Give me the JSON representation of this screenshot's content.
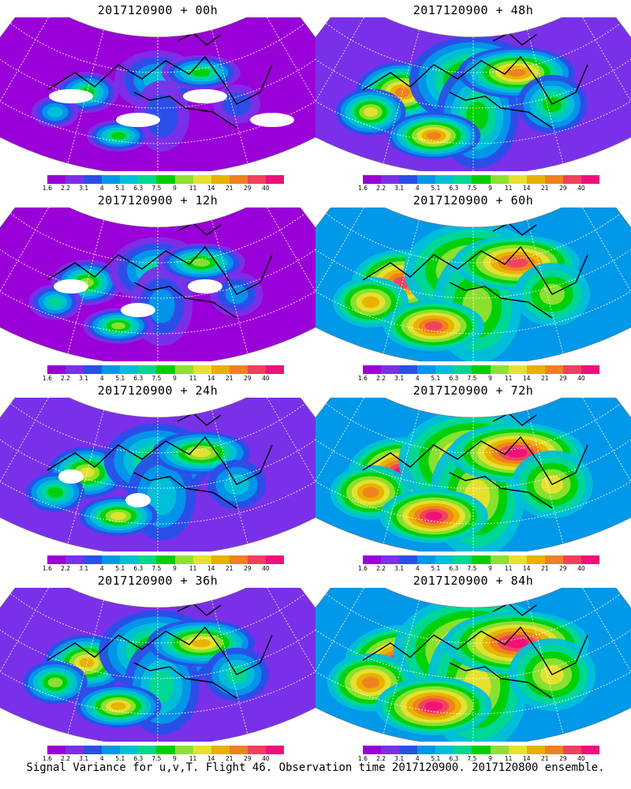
{
  "colorbar": {
    "colors": [
      "#9a00d8",
      "#7a30e8",
      "#2850e8",
      "#0098e8",
      "#00c0d8",
      "#00d890",
      "#00d000",
      "#90e030",
      "#e8e030",
      "#e8b000",
      "#f08020",
      "#f04060",
      "#f0107a"
    ],
    "ticks": [
      "1.6",
      "2.2",
      "3.1",
      "4",
      "5.1",
      "6.3",
      "7.5",
      "9",
      "11",
      "14",
      "21",
      "29",
      "40"
    ]
  },
  "panels": [
    {
      "title": "2017120900 + 00h",
      "level": 0
    },
    {
      "title": "2017120900 + 12h",
      "level": 1
    },
    {
      "title": "2017120900 + 24h",
      "level": 2
    },
    {
      "title": "2017120900 + 36h",
      "level": 3
    },
    {
      "title": "2017120900 + 48h",
      "level": 4
    },
    {
      "title": "2017120900 + 60h",
      "level": 5
    },
    {
      "title": "2017120900 + 72h",
      "level": 6
    },
    {
      "title": "2017120900 + 84h",
      "level": 7
    }
  ],
  "caption": "Signal Variance for u,v,T. Flight 46. Observation time 2017120900. 2017120800 ensemble."
}
